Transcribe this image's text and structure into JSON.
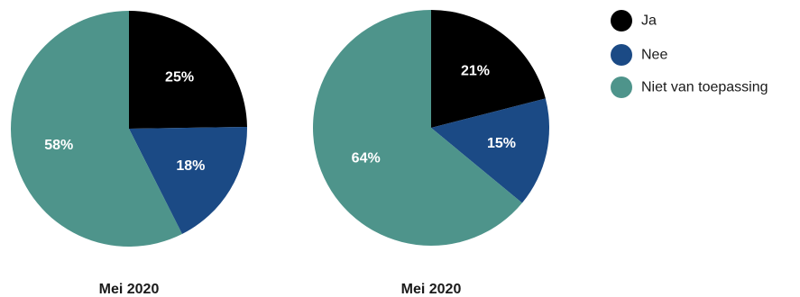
{
  "chart_data": [
    {
      "type": "pie",
      "title": "Mei 2020",
      "categories": [
        "Ja",
        "Nee",
        "Niet van toepassing"
      ],
      "values": [
        25,
        18,
        58
      ],
      "labels": [
        "25%",
        "18%",
        "58%"
      ]
    },
    {
      "type": "pie",
      "title": "Mei 2020",
      "categories": [
        "Ja",
        "Nee",
        "Niet van toepassing"
      ],
      "values": [
        21,
        15,
        64
      ],
      "labels": [
        "21%",
        "15%",
        "64%"
      ]
    }
  ],
  "legend": {
    "placement": "top-right",
    "items": [
      {
        "label": "Ja",
        "color": "#000000"
      },
      {
        "label": "Nee",
        "color": "#1b4a85"
      },
      {
        "label": "Niet van toepassing",
        "color": "#4e948b"
      }
    ]
  }
}
